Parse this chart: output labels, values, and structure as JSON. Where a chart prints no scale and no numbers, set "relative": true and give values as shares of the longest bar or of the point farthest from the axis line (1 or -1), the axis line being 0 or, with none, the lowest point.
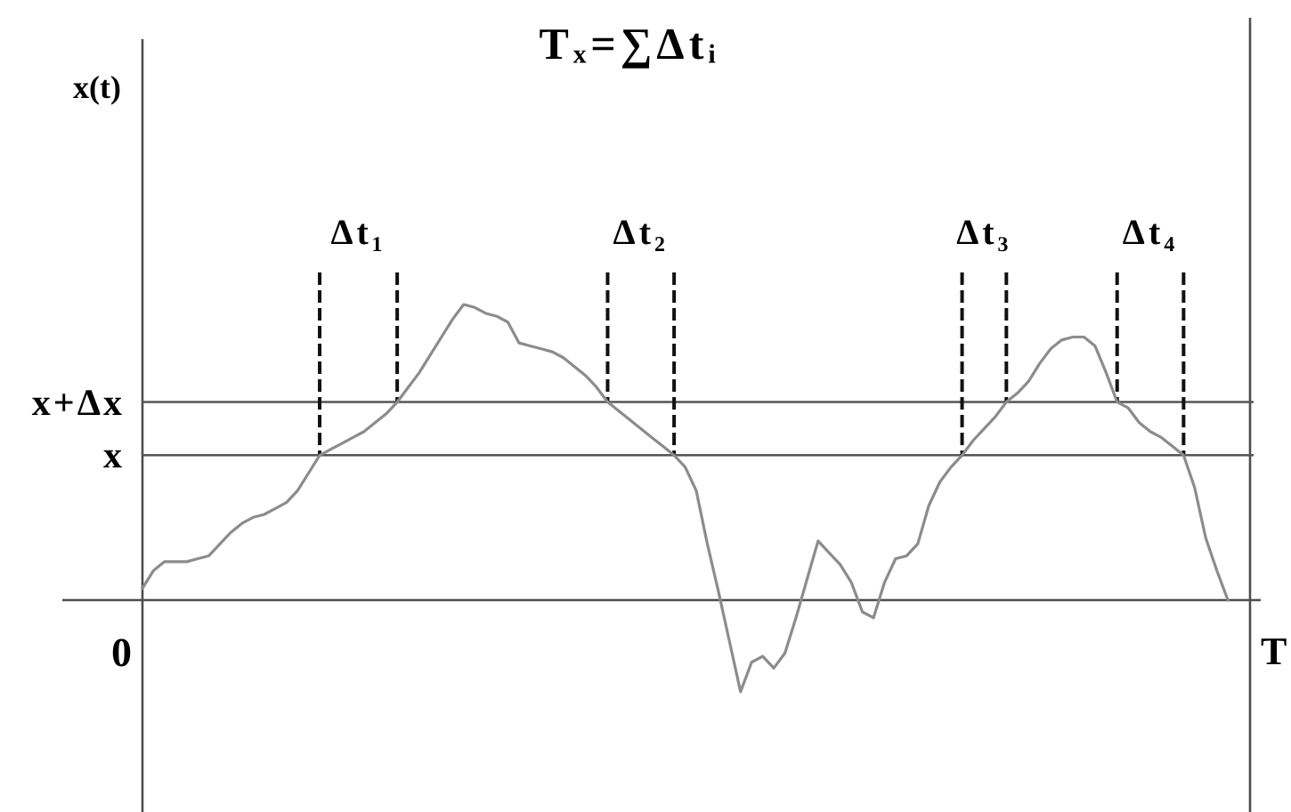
{
  "chart_data": {
    "type": "line",
    "title": "Tₓ=∑Δtᵢ",
    "xlabel": "T",
    "relative": true,
    "categories": [
      null,
      null,
      null,
      null,
      null,
      null,
      null,
      null,
      null,
      null,
      null,
      null,
      null,
      null,
      null,
      null,
      null,
      null,
      null,
      null,
      null,
      null,
      null,
      null,
      null,
      null,
      null,
      null,
      null,
      null,
      null,
      null,
      null,
      null,
      null,
      null,
      null,
      null,
      null,
      null,
      null,
      null,
      null,
      null,
      null,
      null,
      null,
      null,
      null,
      null,
      null,
      null,
      null,
      null,
      null,
      null,
      null,
      null,
      null,
      null,
      null,
      null,
      null,
      null,
      null,
      null,
      null,
      null,
      null,
      null,
      null,
      null,
      null,
      null,
      null,
      null,
      null,
      null,
      null,
      null,
      null,
      null,
      null,
      null,
      null,
      null,
      null,
      null,
      null,
      null,
      null,
      null,
      null,
      null,
      null,
      null,
      null,
      null,
      null
    ],
    "values": [
      0.04,
      0.1,
      0.13,
      0.13,
      0.13,
      0.14,
      0.15,
      0.19,
      0.23,
      0.26,
      0.28,
      0.29,
      0.31,
      0.33,
      0.37,
      0.43,
      0.49,
      0.51,
      0.53,
      0.55,
      0.57,
      0.6,
      0.63,
      0.67,
      0.72,
      0.77,
      0.83,
      0.89,
      0.95,
      1.0,
      0.99,
      0.97,
      0.96,
      0.94,
      0.87,
      0.86,
      0.85,
      0.84,
      0.82,
      0.79,
      0.76,
      0.72,
      0.67,
      0.64,
      0.61,
      0.58,
      0.55,
      0.52,
      0.49,
      0.45,
      0.37,
      0.19,
      0.03,
      -0.14,
      -0.31,
      -0.21,
      -0.19,
      -0.23,
      -0.18,
      -0.06,
      0.07,
      0.2,
      0.16,
      0.12,
      0.06,
      -0.04,
      -0.06,
      0.06,
      0.14,
      0.15,
      0.19,
      0.32,
      0.4,
      0.45,
      0.49,
      0.54,
      0.58,
      0.62,
      0.67,
      0.7,
      0.74,
      0.8,
      0.85,
      0.88,
      0.89,
      0.89,
      0.86,
      0.77,
      0.67,
      0.65,
      0.6,
      0.57,
      0.55,
      0.52,
      0.49,
      0.38,
      0.21,
      0.1,
      0.0
    ],
    "color": "#8c8c8c",
    "ref_lines": [
      {
        "axis": "y",
        "value": 0.49,
        "label": "x",
        "color": "#555555"
      },
      {
        "axis": "y",
        "value": 0.67,
        "label": "x+Δx",
        "color": "#555555"
      }
    ],
    "annotations": [
      "Δt₁",
      "Δt₂",
      "Δt₃",
      "Δt₄",
      "0",
      "x(t)"
    ]
  }
}
